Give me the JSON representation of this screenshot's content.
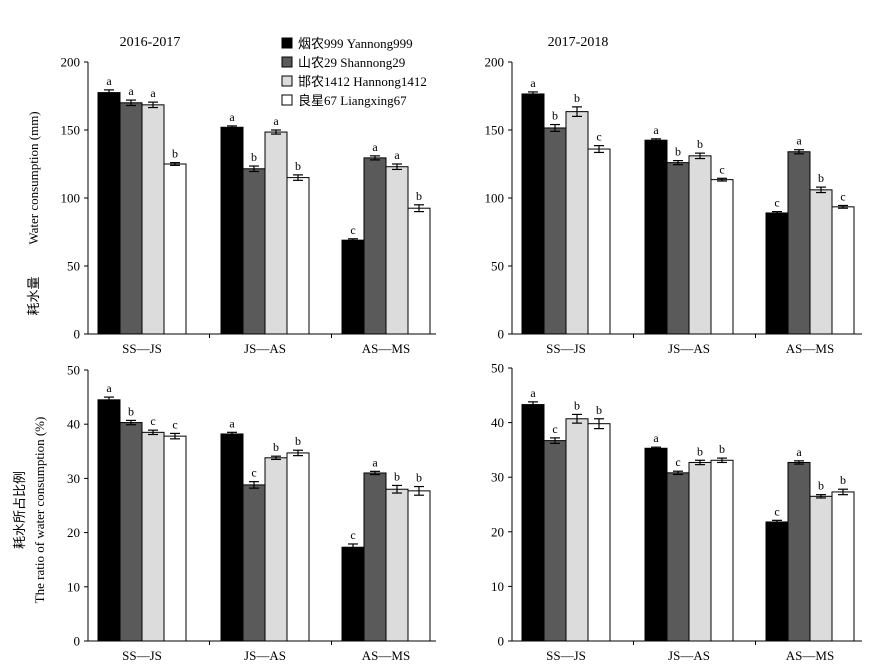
{
  "legend": [
    {
      "label": "烟农999 Yannong999",
      "color": "#000000"
    },
    {
      "label": "山农29 Shannong29",
      "color": "#5a5a5a"
    },
    {
      "label": "邯农1412 Hannong1412",
      "color": "#dcdcdc"
    },
    {
      "label": "良星67 Liangxing67",
      "color": "#ffffff"
    }
  ],
  "ylabels": {
    "top_cn": "耗水量",
    "top_en": "Water consumption (mm)",
    "bottom_cn": "耗水所占比例",
    "bottom_en": "The ratio of water consumption (%)"
  },
  "chart_data": [
    {
      "type": "bar",
      "title": "2016-2017",
      "categories": [
        "SS—JS",
        "JS—AS",
        "AS—MS"
      ],
      "ylim": [
        0,
        200
      ],
      "yticks": [
        0,
        50,
        100,
        150,
        200
      ],
      "series": [
        {
          "name": "烟农999 Yannong999",
          "values": [
            177.5,
            152,
            69
          ],
          "errors": [
            2,
            1,
            1
          ],
          "letters": [
            "a",
            "a",
            "c"
          ]
        },
        {
          "name": "山农29 Shannong29",
          "values": [
            170,
            121.5,
            129.5
          ],
          "errors": [
            2,
            2,
            1.5
          ],
          "letters": [
            "a",
            "b",
            "a"
          ]
        },
        {
          "name": "邯农1412 Hannong1412",
          "values": [
            168.5,
            148.5,
            123
          ],
          "errors": [
            2,
            1.5,
            2
          ],
          "letters": [
            "a",
            "a",
            "a"
          ]
        },
        {
          "name": "良星67 Liangxing67",
          "values": [
            125,
            115,
            92.5
          ],
          "errors": [
            1,
            2,
            2.5
          ],
          "letters": [
            "b",
            "b",
            "b"
          ]
        }
      ]
    },
    {
      "type": "bar",
      "title": "2017-2018",
      "categories": [
        "SS—JS",
        "JS—AS",
        "AS—MS"
      ],
      "ylim": [
        0,
        200
      ],
      "yticks": [
        0,
        50,
        100,
        150,
        200
      ],
      "series": [
        {
          "name": "烟农999 Yannong999",
          "values": [
            176.5,
            142.5,
            89
          ],
          "errors": [
            1.5,
            1,
            1
          ],
          "letters": [
            "a",
            "a",
            "c"
          ]
        },
        {
          "name": "山农29 Shannong29",
          "values": [
            151.5,
            126,
            134
          ],
          "errors": [
            2.5,
            1.5,
            1.5
          ],
          "letters": [
            "b",
            "b",
            "a"
          ]
        },
        {
          "name": "邯农1412 Hannong1412",
          "values": [
            163.5,
            131,
            106
          ],
          "errors": [
            3.5,
            2,
            2
          ],
          "letters": [
            "b",
            "b",
            "b"
          ]
        },
        {
          "name": "良星67 Liangxing67",
          "values": [
            136,
            113.5,
            93.5
          ],
          "errors": [
            2.5,
            1,
            1
          ],
          "letters": [
            "c",
            "c",
            "c"
          ]
        }
      ]
    },
    {
      "type": "bar",
      "title": "",
      "categories": [
        "SS—JS",
        "JS—AS",
        "AS—MS"
      ],
      "ylim": [
        0,
        50
      ],
      "yticks": [
        0,
        10,
        20,
        30,
        40,
        50
      ],
      "series": [
        {
          "name": "烟农999 Yannong999",
          "values": [
            44.5,
            38.2,
            17.3
          ],
          "errors": [
            0.5,
            0.3,
            0.6
          ],
          "letters": [
            "a",
            "a",
            "c"
          ]
        },
        {
          "name": "山农29 Shannong29",
          "values": [
            40.3,
            28.8,
            31
          ],
          "errors": [
            0.4,
            0.6,
            0.3
          ],
          "letters": [
            "b",
            "c",
            "a"
          ]
        },
        {
          "name": "邯农1412 Hannong1412",
          "values": [
            38.5,
            33.8,
            28
          ],
          "errors": [
            0.4,
            0.3,
            0.7
          ],
          "letters": [
            "c",
            "b",
            "b"
          ]
        },
        {
          "name": "良星67 Liangxing67",
          "values": [
            37.8,
            34.7,
            27.7
          ],
          "errors": [
            0.5,
            0.5,
            0.8
          ],
          "letters": [
            "c",
            "b",
            "b"
          ]
        }
      ]
    },
    {
      "type": "bar",
      "title": "",
      "categories": [
        "SS—JS",
        "JS—AS",
        "AS—MS"
      ],
      "ylim": [
        0,
        50
      ],
      "yticks": [
        0,
        10,
        20,
        30,
        40,
        50
      ],
      "series": [
        {
          "name": "烟农999 Yannong999",
          "values": [
            43.3,
            35.3,
            21.8
          ],
          "errors": [
            0.5,
            0.2,
            0.3
          ],
          "letters": [
            "a",
            "a",
            "c"
          ]
        },
        {
          "name": "山农29 Shannong29",
          "values": [
            36.7,
            30.8,
            32.7
          ],
          "errors": [
            0.5,
            0.3,
            0.3
          ],
          "letters": [
            "c",
            "c",
            "a"
          ]
        },
        {
          "name": "邯农1412 Hannong1412",
          "values": [
            40.7,
            32.7,
            26.5
          ],
          "errors": [
            0.8,
            0.4,
            0.3
          ],
          "letters": [
            "b",
            "b",
            "b"
          ]
        },
        {
          "name": "良星67 Liangxing67",
          "values": [
            39.8,
            33.1,
            27.3
          ],
          "errors": [
            0.9,
            0.4,
            0.5
          ],
          "letters": [
            "b",
            "b",
            "b"
          ]
        }
      ]
    }
  ]
}
